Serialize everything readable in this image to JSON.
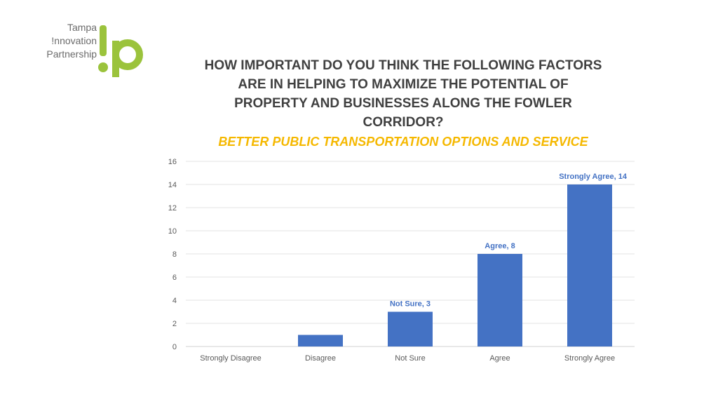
{
  "logo": {
    "lines": [
      "Tampa",
      "!nnovation",
      "Partnership"
    ],
    "color": "#9bc33c"
  },
  "title": "HOW IMPORTANT DO YOU THINK THE FOLLOWING FACTORS ARE IN HELPING TO MAXIMIZE THE POTENTIAL OF PROPERTY AND BUSINESSES ALONG THE FOWLER CORRIDOR?",
  "subtitle": "BETTER PUBLIC TRANSPORTATION OPTIONS AND SERVICE",
  "chart_data": {
    "type": "bar",
    "categories": [
      "Strongly Disagree",
      "Disagree",
      "Not Sure",
      "Agree",
      "Strongly Agree"
    ],
    "values": [
      0,
      1,
      3,
      8,
      14
    ],
    "data_labels": [
      "",
      "",
      "Not Sure, 3",
      "Agree, 8",
      "Strongly Agree, 14"
    ],
    "ylim": [
      0,
      16
    ],
    "yticks": [
      0,
      2,
      4,
      6,
      8,
      10,
      12,
      14,
      16
    ],
    "grid": true,
    "bar_color": "#4472c4",
    "xlabel": "",
    "ylabel": ""
  }
}
